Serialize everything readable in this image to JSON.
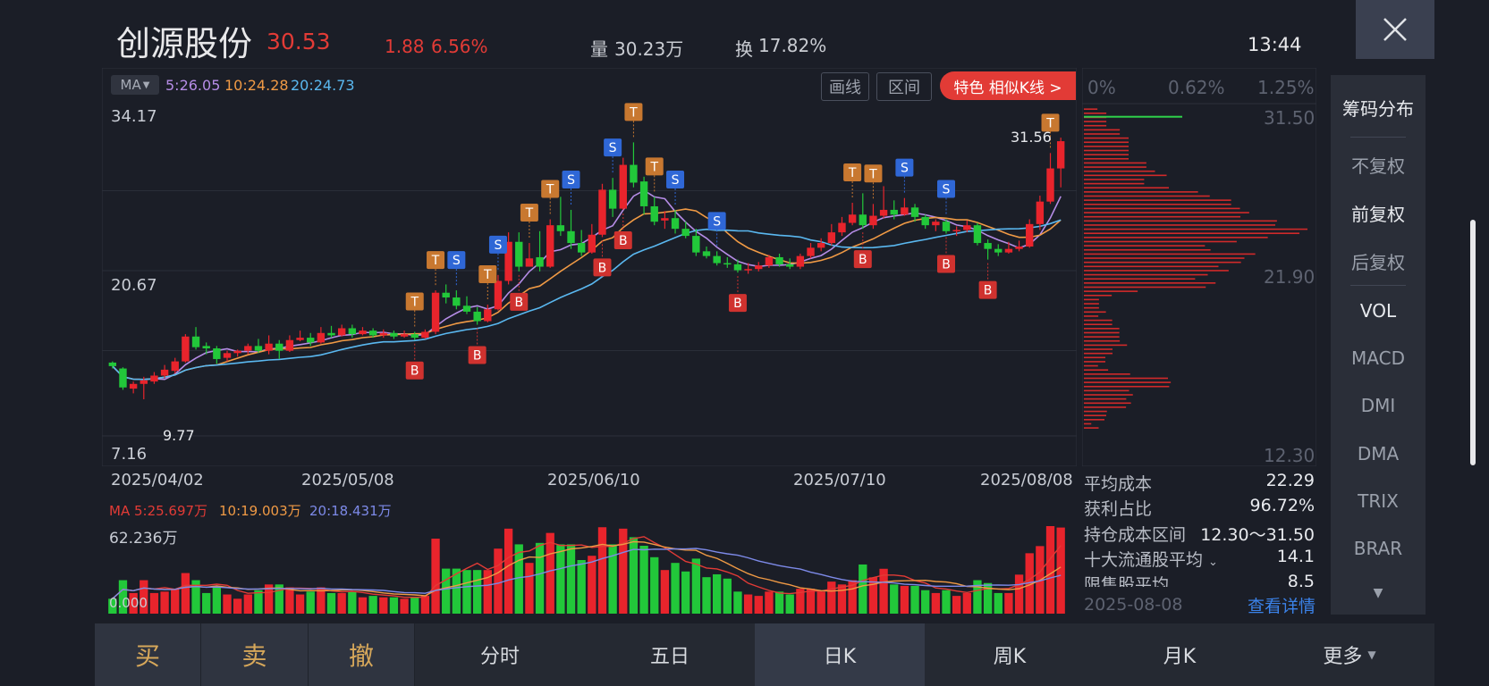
{
  "header": {
    "stock_name": "创源股份",
    "price": "30.53",
    "change": "1.88",
    "change_pct": "6.56%",
    "volume_label": "量",
    "volume": "30.23万",
    "turnover_label": "换",
    "turnover": "17.82%",
    "time": "13:44"
  },
  "toolbar": {
    "ma_selector": "MA",
    "ma5": "5:26.05",
    "ma10": "10:24.28",
    "ma20": "20:24.73",
    "draw_line": "画线",
    "range": "区间",
    "similar_k": "特色  相似K线 >"
  },
  "main_chart": {
    "y_top": "34.17",
    "y_mid": "20.67",
    "y_bottom": "7.16",
    "high_mark": "31.56",
    "low_mark": "9.77",
    "dates": [
      "2025/04/02",
      "2025/05/08",
      "2025/06/10",
      "2025/07/10",
      "2025/08/08"
    ]
  },
  "volume_chart": {
    "ma5": "MA 5:25.697万",
    "ma10": "10:19.003万",
    "ma20": "20:18.431万",
    "y_top": "62.236万",
    "y_bottom": "0.000"
  },
  "chips": {
    "pct_labels": [
      "0%",
      "0.62%",
      "1.25%"
    ],
    "price_labels": [
      "31.50",
      "21.90",
      "12.30"
    ],
    "stats": [
      {
        "label": "平均成本",
        "value": "22.29"
      },
      {
        "label": "获利占比",
        "value": "96.72%"
      },
      {
        "label": "持仓成本区间",
        "value": "12.30～31.50"
      },
      {
        "label": "十大流通股平均",
        "value": "14.1"
      },
      {
        "label": "限售股平均",
        "value": "8.5"
      }
    ],
    "date": "2025-08-08",
    "detail_link": "查看详情"
  },
  "side_menu": [
    "筹码分布",
    "不复权",
    "前复权",
    "后复权",
    "VOL",
    "MACD",
    "DMI",
    "DMA",
    "TRIX",
    "BRAR"
  ],
  "bottom": {
    "buy": "买",
    "sell": "卖",
    "cancel": "撤",
    "tabs": [
      "分时",
      "五日",
      "日K",
      "周K",
      "月K",
      "更多"
    ]
  },
  "colors": {
    "up": "#e8242c",
    "down": "#22c83a",
    "ma5": "#b58ce6",
    "ma10": "#f09a45",
    "ma20": "#5ab8f0",
    "buy_signal": "#d0322f",
    "sell_signal": "#2f67d6",
    "td_marker": "#c87830"
  },
  "chart_data": {
    "type": "candlestick",
    "ylim": [
      7.16,
      34.17
    ],
    "candles": [
      [
        12.9,
        12.6,
        13.0,
        12.4
      ],
      [
        12.4,
        10.8,
        12.5,
        10.6
      ],
      [
        10.7,
        11.1,
        11.3,
        10.3
      ],
      [
        11.1,
        11.4,
        11.7,
        9.8
      ],
      [
        11.3,
        11.8,
        12.1,
        11.1
      ],
      [
        11.8,
        12.3,
        12.7,
        11.6
      ],
      [
        12.2,
        13.0,
        13.3,
        12.0
      ],
      [
        13.0,
        15.1,
        15.3,
        12.9
      ],
      [
        15.1,
        14.2,
        15.9,
        14.0
      ],
      [
        14.3,
        14.1,
        14.6,
        13.6
      ],
      [
        14.1,
        13.2,
        14.3,
        12.8
      ],
      [
        13.3,
        13.7,
        13.9,
        13.0
      ],
      [
        13.7,
        13.9,
        14.0,
        13.4
      ],
      [
        13.9,
        14.3,
        14.5,
        13.6
      ],
      [
        14.3,
        13.9,
        14.9,
        13.7
      ],
      [
        13.9,
        14.5,
        15.2,
        13.6
      ],
      [
        14.5,
        13.9,
        14.8,
        13.2
      ],
      [
        13.9,
        14.8,
        15.2,
        13.8
      ],
      [
        14.8,
        15.0,
        15.6,
        14.7
      ],
      [
        15.0,
        14.6,
        15.4,
        14.3
      ],
      [
        14.6,
        15.4,
        15.9,
        14.5
      ],
      [
        15.4,
        15.2,
        16.0,
        15.0
      ],
      [
        15.2,
        15.8,
        16.1,
        15.1
      ],
      [
        15.8,
        15.3,
        16.1,
        15.0
      ],
      [
        15.3,
        15.6,
        15.9,
        15.2
      ],
      [
        15.6,
        15.2,
        15.8,
        15.0
      ],
      [
        15.2,
        15.4,
        15.7,
        15.0
      ],
      [
        15.4,
        15.1,
        15.6,
        14.9
      ],
      [
        15.1,
        15.3,
        15.6,
        15.0
      ],
      [
        15.3,
        15.0,
        15.5,
        14.8
      ],
      [
        15.0,
        15.5,
        15.7,
        14.9
      ],
      [
        15.5,
        18.8,
        19.0,
        15.3
      ],
      [
        18.8,
        18.4,
        19.5,
        17.9
      ],
      [
        18.4,
        17.7,
        19.0,
        17.4
      ],
      [
        17.7,
        17.2,
        18.5,
        17.0
      ],
      [
        17.2,
        16.4,
        17.6,
        16.1
      ],
      [
        16.4,
        17.4,
        17.8,
        16.3
      ],
      [
        17.4,
        19.8,
        20.3,
        17.3
      ],
      [
        19.8,
        23.1,
        23.9,
        19.5
      ],
      [
        23.1,
        21.0,
        23.9,
        20.6
      ],
      [
        21.0,
        21.7,
        23.0,
        21.0
      ],
      [
        21.8,
        21.0,
        24.0,
        20.6
      ],
      [
        21.0,
        24.5,
        25.0,
        20.9
      ],
      [
        24.5,
        24.0,
        26.9,
        23.6
      ],
      [
        24.0,
        23.0,
        25.8,
        22.5
      ],
      [
        23.0,
        22.2,
        24.1,
        21.9
      ],
      [
        22.2,
        23.7,
        24.6,
        22.1
      ],
      [
        23.7,
        27.5,
        28.0,
        23.5
      ],
      [
        27.5,
        25.9,
        28.5,
        25.2
      ],
      [
        25.9,
        29.6,
        30.2,
        25.8
      ],
      [
        29.6,
        28.1,
        31.5,
        27.7
      ],
      [
        28.2,
        26.1,
        28.6,
        25.4
      ],
      [
        26.1,
        24.8,
        26.9,
        24.5
      ],
      [
        24.9,
        25.1,
        25.7,
        24.2
      ],
      [
        25.1,
        24.2,
        25.8,
        23.8
      ],
      [
        24.2,
        23.6,
        24.8,
        23.4
      ],
      [
        23.6,
        22.2,
        24.2,
        21.9
      ],
      [
        22.3,
        21.9,
        22.7,
        21.7
      ],
      [
        21.9,
        21.3,
        22.3,
        21.1
      ],
      [
        21.3,
        21.2,
        21.8,
        20.9
      ],
      [
        21.2,
        20.7,
        21.6,
        20.5
      ],
      [
        20.7,
        20.8,
        21.3,
        20.4
      ],
      [
        20.8,
        21.1,
        21.4,
        20.6
      ],
      [
        21.1,
        21.8,
        22.0,
        20.9
      ],
      [
        21.8,
        21.2,
        22.1,
        21.0
      ],
      [
        21.2,
        21.0,
        21.7,
        20.8
      ],
      [
        21.0,
        21.9,
        22.1,
        20.8
      ],
      [
        21.9,
        22.6,
        23.0,
        21.7
      ],
      [
        22.6,
        23.0,
        23.4,
        22.3
      ],
      [
        23.0,
        23.9,
        24.6,
        22.8
      ],
      [
        23.9,
        24.7,
        25.2,
        23.6
      ],
      [
        24.7,
        25.4,
        26.4,
        24.5
      ],
      [
        25.4,
        24.5,
        27.2,
        24.2
      ],
      [
        24.5,
        25.3,
        26.3,
        24.2
      ],
      [
        25.3,
        25.8,
        27.8,
        25.1
      ],
      [
        25.8,
        25.4,
        26.6,
        25.0
      ],
      [
        25.4,
        26.0,
        26.8,
        25.3
      ],
      [
        26.0,
        25.2,
        26.3,
        24.8
      ],
      [
        25.2,
        24.5,
        25.4,
        24.2
      ],
      [
        24.5,
        24.8,
        25.0,
        24.0
      ],
      [
        24.8,
        24.0,
        25.0,
        23.8
      ],
      [
        24.0,
        24.1,
        24.4,
        23.6
      ],
      [
        24.1,
        24.5,
        24.9,
        23.9
      ],
      [
        24.5,
        23.0,
        24.7,
        22.8
      ],
      [
        23.0,
        22.5,
        23.3,
        21.6
      ],
      [
        22.5,
        22.2,
        22.9,
        21.9
      ],
      [
        22.2,
        22.5,
        23.1,
        22.1
      ],
      [
        22.5,
        22.7,
        23.2,
        22.3
      ],
      [
        22.7,
        24.6,
        25.0,
        22.6
      ],
      [
        24.6,
        26.5,
        27.0,
        24.1
      ],
      [
        26.5,
        29.3,
        30.6,
        26.3
      ],
      [
        29.3,
        31.6,
        31.9,
        27.7
      ]
    ],
    "chip_price_range": [
      12.3,
      31.5
    ],
    "chip_pct_range": [
      0,
      1.25
    ],
    "avg_cost": 22.29,
    "profit_ratio": "96.72%"
  }
}
